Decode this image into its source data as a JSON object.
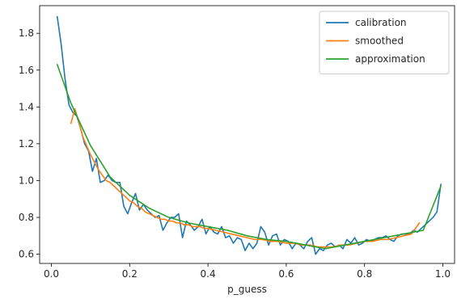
{
  "chart_data": {
    "type": "line",
    "title": "",
    "xlabel": "p_guess",
    "ylabel": "",
    "xlim": [
      -0.03,
      1.03
    ],
    "ylim": [
      0.55,
      1.95
    ],
    "x_ticks": [
      0.0,
      0.2,
      0.4,
      0.6,
      0.8,
      1.0
    ],
    "x_tick_labels": [
      "0.0",
      "0.2",
      "0.4",
      "0.6",
      "0.8",
      "1.0"
    ],
    "y_ticks": [
      0.6,
      0.8,
      1.0,
      1.2,
      1.4,
      1.6,
      1.8
    ],
    "y_tick_labels": [
      "0.6",
      "0.8",
      "1.0",
      "1.2",
      "1.4",
      "1.6",
      "1.8"
    ],
    "grid": false,
    "legend_position": "top-right",
    "series": [
      {
        "name": "calibration",
        "color": "#1f77b4",
        "x": [
          0.015,
          0.025,
          0.035,
          0.045,
          0.055,
          0.065,
          0.075,
          0.085,
          0.095,
          0.105,
          0.115,
          0.125,
          0.135,
          0.145,
          0.155,
          0.165,
          0.175,
          0.185,
          0.195,
          0.205,
          0.215,
          0.225,
          0.235,
          0.245,
          0.255,
          0.265,
          0.275,
          0.285,
          0.295,
          0.305,
          0.315,
          0.325,
          0.335,
          0.345,
          0.355,
          0.365,
          0.375,
          0.385,
          0.395,
          0.405,
          0.415,
          0.425,
          0.435,
          0.445,
          0.455,
          0.465,
          0.475,
          0.485,
          0.495,
          0.505,
          0.515,
          0.525,
          0.535,
          0.545,
          0.555,
          0.565,
          0.575,
          0.585,
          0.595,
          0.605,
          0.615,
          0.625,
          0.635,
          0.645,
          0.655,
          0.665,
          0.675,
          0.685,
          0.695,
          0.705,
          0.715,
          0.725,
          0.735,
          0.745,
          0.755,
          0.765,
          0.775,
          0.785,
          0.795,
          0.805,
          0.815,
          0.825,
          0.835,
          0.845,
          0.855,
          0.865,
          0.875,
          0.885,
          0.895,
          0.905,
          0.915,
          0.925,
          0.935,
          0.945,
          0.955,
          0.965,
          0.975,
          0.985,
          0.995
        ],
        "y": [
          1.89,
          1.74,
          1.55,
          1.41,
          1.37,
          1.35,
          1.28,
          1.2,
          1.16,
          1.05,
          1.12,
          0.99,
          1.0,
          1.03,
          1.0,
          0.99,
          0.99,
          0.86,
          0.82,
          0.88,
          0.93,
          0.84,
          0.87,
          0.84,
          0.82,
          0.8,
          0.81,
          0.73,
          0.77,
          0.8,
          0.8,
          0.82,
          0.69,
          0.78,
          0.76,
          0.73,
          0.75,
          0.79,
          0.71,
          0.75,
          0.72,
          0.71,
          0.75,
          0.69,
          0.7,
          0.66,
          0.69,
          0.68,
          0.62,
          0.66,
          0.63,
          0.66,
          0.75,
          0.72,
          0.65,
          0.7,
          0.71,
          0.65,
          0.68,
          0.67,
          0.63,
          0.66,
          0.65,
          0.63,
          0.67,
          0.69,
          0.6,
          0.63,
          0.62,
          0.65,
          0.66,
          0.64,
          0.65,
          0.63,
          0.68,
          0.66,
          0.69,
          0.65,
          0.66,
          0.68,
          0.67,
          0.68,
          0.69,
          0.69,
          0.7,
          0.68,
          0.67,
          0.7,
          0.71,
          0.71,
          0.71,
          0.73,
          0.72,
          0.74,
          0.76,
          0.78,
          0.8,
          0.83,
          0.98
        ]
      },
      {
        "name": "smoothed",
        "color": "#ff7f0e",
        "x": [
          0.05,
          0.06,
          0.07,
          0.08,
          0.09,
          0.1,
          0.11,
          0.12,
          0.13,
          0.14,
          0.15,
          0.16,
          0.17,
          0.18,
          0.19,
          0.2,
          0.21,
          0.22,
          0.23,
          0.24,
          0.25,
          0.26,
          0.27,
          0.28,
          0.29,
          0.3,
          0.31,
          0.32,
          0.33,
          0.34,
          0.35,
          0.36,
          0.37,
          0.38,
          0.39,
          0.4,
          0.42,
          0.44,
          0.46,
          0.48,
          0.5,
          0.52,
          0.54,
          0.56,
          0.58,
          0.6,
          0.62,
          0.64,
          0.66,
          0.68,
          0.7,
          0.72,
          0.74,
          0.76,
          0.78,
          0.8,
          0.82,
          0.84,
          0.86,
          0.88,
          0.9,
          0.92,
          0.94
        ],
        "y": [
          1.31,
          1.39,
          1.32,
          1.24,
          1.19,
          1.14,
          1.1,
          1.06,
          1.03,
          1.0,
          0.99,
          0.97,
          0.95,
          0.93,
          0.91,
          0.89,
          0.88,
          0.86,
          0.85,
          0.83,
          0.82,
          0.81,
          0.8,
          0.79,
          0.79,
          0.78,
          0.78,
          0.77,
          0.77,
          0.76,
          0.76,
          0.75,
          0.75,
          0.75,
          0.74,
          0.74,
          0.73,
          0.72,
          0.71,
          0.7,
          0.69,
          0.68,
          0.68,
          0.67,
          0.67,
          0.66,
          0.66,
          0.65,
          0.65,
          0.64,
          0.64,
          0.64,
          0.65,
          0.65,
          0.66,
          0.67,
          0.67,
          0.68,
          0.68,
          0.69,
          0.7,
          0.71,
          0.77
        ]
      },
      {
        "name": "approximation",
        "color": "#2ca02c",
        "x": [
          0.015,
          0.05,
          0.1,
          0.15,
          0.2,
          0.25,
          0.3,
          0.35,
          0.4,
          0.45,
          0.5,
          0.55,
          0.6,
          0.65,
          0.7,
          0.75,
          0.8,
          0.85,
          0.9,
          0.95,
          0.995
        ],
        "y": [
          1.63,
          1.42,
          1.19,
          1.02,
          0.92,
          0.85,
          0.8,
          0.77,
          0.75,
          0.73,
          0.7,
          0.68,
          0.67,
          0.65,
          0.63,
          0.65,
          0.67,
          0.69,
          0.71,
          0.73,
          0.97
        ]
      }
    ]
  }
}
